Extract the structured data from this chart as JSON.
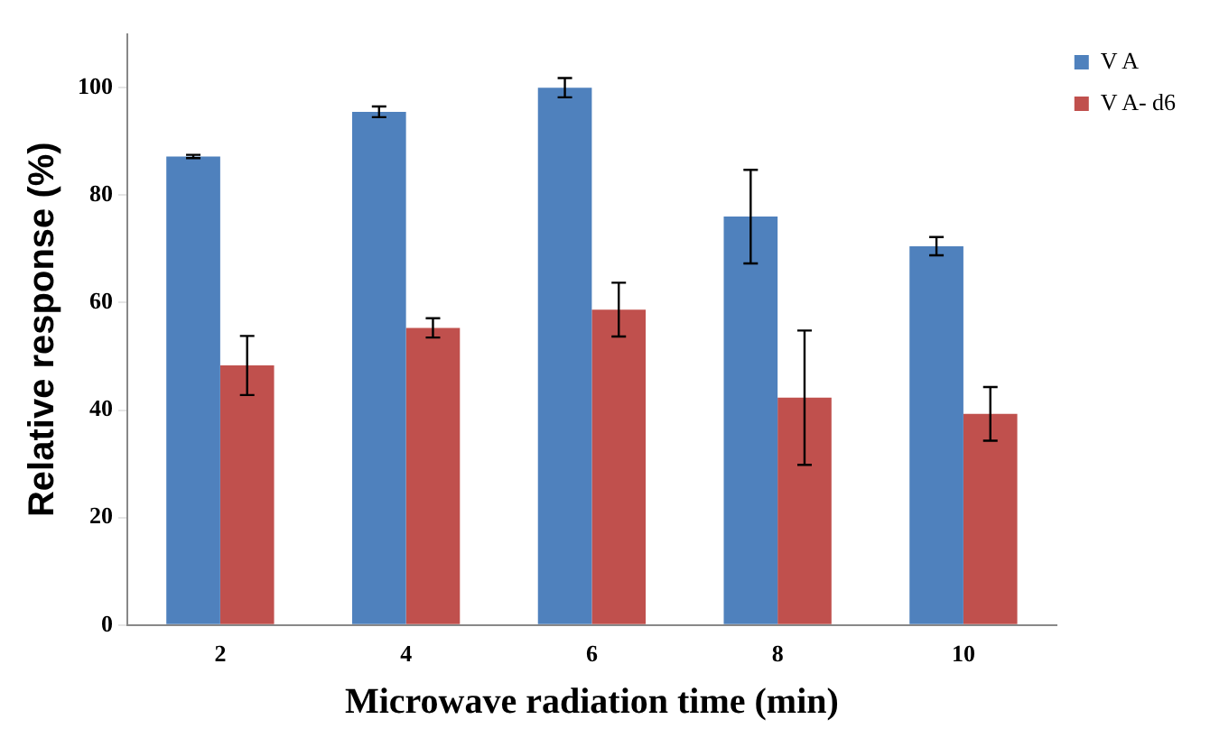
{
  "chart_data": {
    "type": "bar",
    "xlabel": "Microwave radiation time (min)",
    "ylabel": "Relative response (%)",
    "categories": [
      "2",
      "4",
      "6",
      "8",
      "10"
    ],
    "series": [
      {
        "name": "V A",
        "color": "#4f81bd",
        "values": [
          87.2,
          95.5,
          100,
          76,
          70.5
        ],
        "errors": [
          0.3,
          1,
          1.8,
          8.7,
          1.7
        ]
      },
      {
        "name": "V A- d6",
        "color": "#c0504d",
        "values": [
          48.3,
          55.3,
          58.7,
          42.3,
          39.3
        ],
        "errors": [
          5.5,
          1.8,
          5,
          12.5,
          5
        ]
      }
    ],
    "ylim": [
      0,
      110
    ],
    "yticks": [
      0,
      20,
      40,
      60,
      80,
      100
    ],
    "grid": false,
    "legend": "top right"
  }
}
